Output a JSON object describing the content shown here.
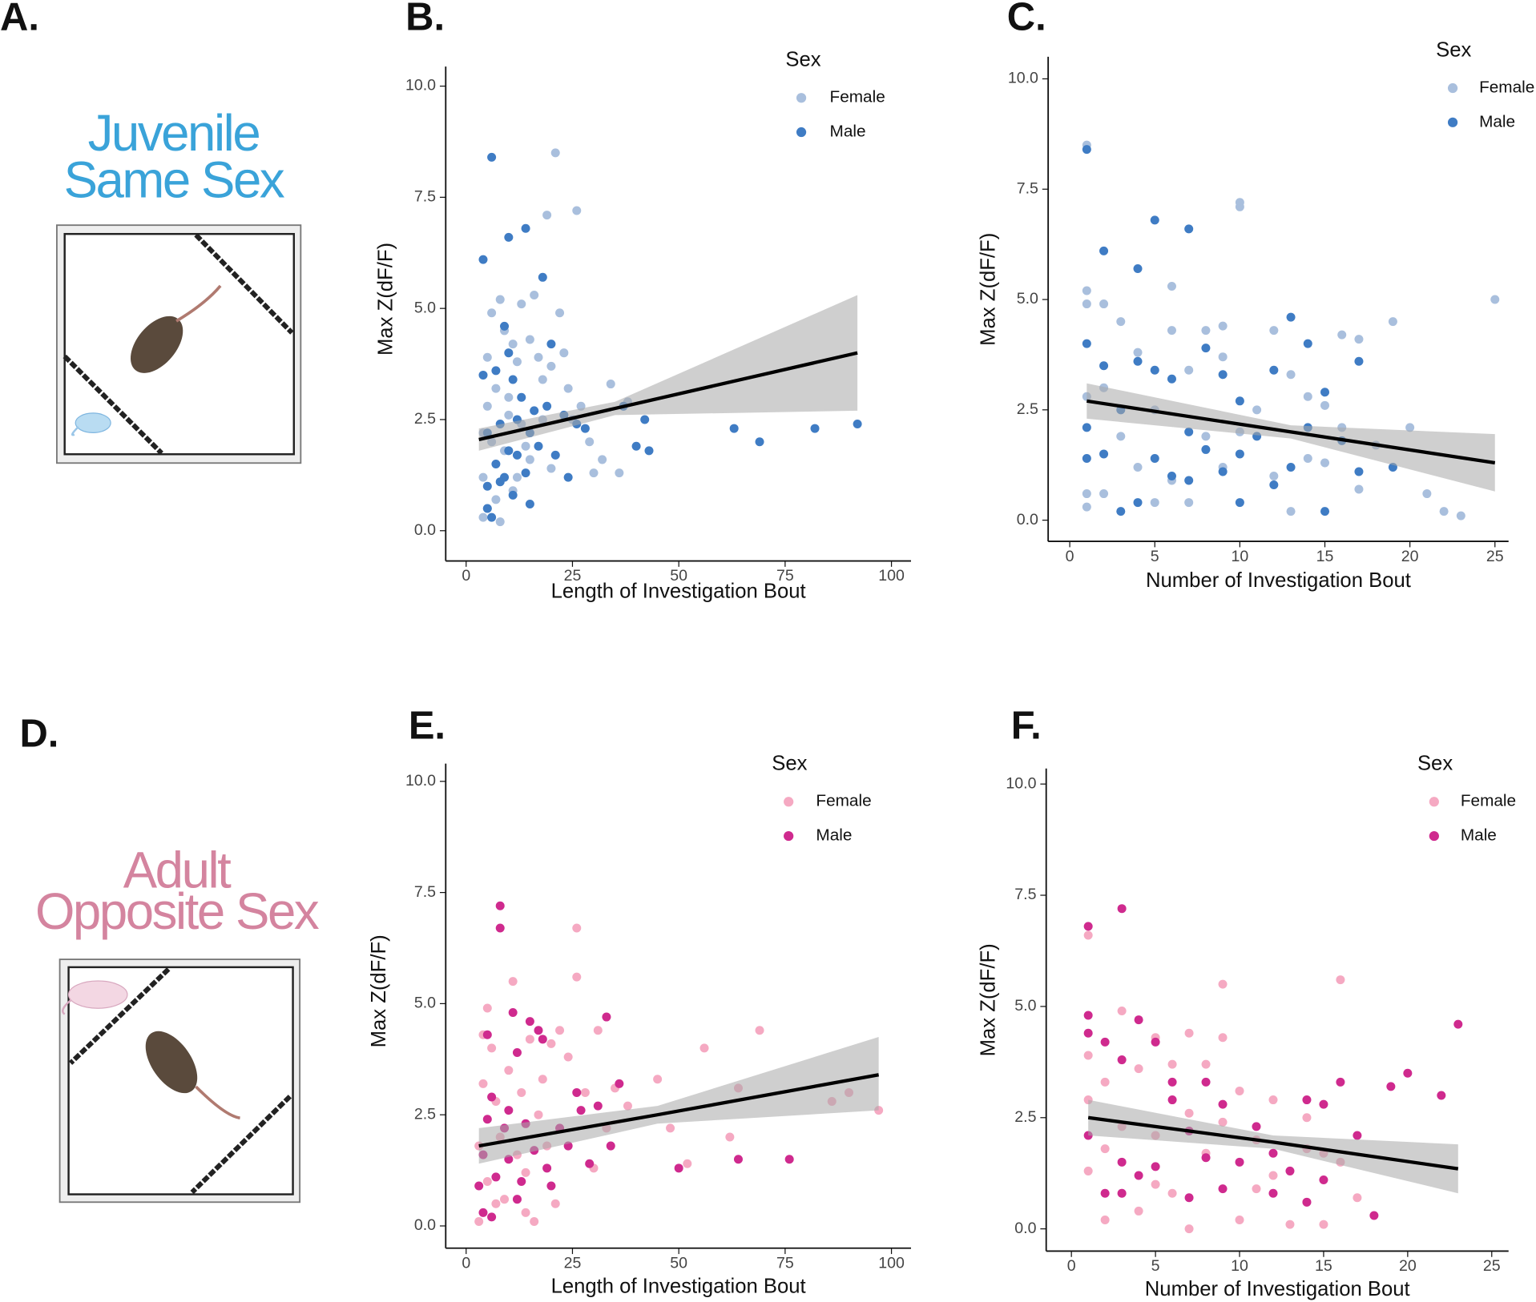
{
  "panel_labels": [
    "A.",
    "B.",
    "C.",
    "D.",
    "E.",
    "F."
  ],
  "illustrations": [
    {
      "title_lines": [
        "Juvenile",
        "Same Sex"
      ]
    },
    {
      "title_lines": [
        "Adult",
        "Opposite Sex"
      ]
    }
  ],
  "chart_data": [
    {
      "type": "scatter",
      "x_label": "Length of Investigation Bout",
      "y_label": "Max Z(dF/F)",
      "legend_title": "Sex",
      "xlim": [
        -4.8,
        104.6
      ],
      "ylim": [
        -0.68,
        10.44
      ],
      "xticks": [
        0,
        25,
        50,
        75,
        100
      ],
      "yticks": [
        {
          "value": 0,
          "label": "0.0"
        },
        {
          "value": 2.5,
          "label": "2.5"
        },
        {
          "value": 5,
          "label": "5.0"
        },
        {
          "value": 7.5,
          "label": "7.5"
        },
        {
          "value": 10,
          "label": "10.0"
        }
      ],
      "series": [
        {
          "name": "Female",
          "color": "#a9bfdd",
          "x": [
            4,
            5,
            4,
            6,
            5,
            7,
            6,
            8,
            9,
            10,
            11,
            12,
            13,
            14,
            15,
            16,
            17,
            18,
            19,
            20,
            21,
            22,
            23,
            24,
            26,
            27,
            29,
            30,
            32,
            34,
            36,
            38,
            4,
            7,
            9,
            11,
            13,
            15,
            18,
            20,
            25,
            5,
            8,
            10,
            12
          ],
          "values": [
            0.3,
            0.5,
            1.2,
            2.0,
            2.8,
            3.2,
            4.9,
            5.2,
            4.5,
            3.0,
            4.2,
            3.8,
            2.4,
            1.9,
            4.3,
            5.3,
            3.9,
            2.5,
            7.1,
            3.7,
            8.5,
            4.9,
            4.0,
            3.2,
            7.2,
            2.8,
            2.0,
            1.3,
            1.6,
            3.3,
            1.3,
            2.9,
            2.2,
            0.7,
            1.8,
            0.9,
            5.1,
            1.6,
            3.4,
            1.4,
            2.5,
            3.9,
            0.2,
            2.6,
            1.2
          ]
        },
        {
          "name": "Male",
          "color": "#3f7cc4",
          "x": [
            4,
            6,
            4,
            5,
            5,
            6,
            7,
            7,
            8,
            9,
            9,
            10,
            10,
            11,
            11,
            12,
            12,
            13,
            14,
            14,
            15,
            15,
            16,
            17,
            18,
            19,
            20,
            21,
            23,
            24,
            26,
            28,
            37,
            40,
            42,
            43,
            63,
            69,
            82,
            92,
            5,
            8,
            10
          ],
          "values": [
            6.1,
            8.4,
            3.5,
            2.2,
            1.0,
            0.3,
            1.5,
            3.6,
            2.4,
            4.6,
            1.2,
            6.6,
            4.0,
            3.4,
            0.8,
            2.5,
            1.7,
            3.0,
            6.8,
            1.3,
            0.6,
            2.2,
            2.7,
            1.9,
            5.7,
            2.8,
            4.2,
            1.7,
            2.6,
            1.2,
            2.4,
            2.3,
            2.8,
            1.9,
            2.5,
            1.8,
            2.3,
            2.0,
            2.3,
            2.4,
            0.5,
            1.1,
            1.8
          ]
        }
      ],
      "fit": {
        "x": [
          3,
          35,
          92
        ],
        "values": [
          2.05,
          2.75,
          4.0
        ],
        "lower": [
          1.8,
          2.6,
          2.7
        ],
        "upper": [
          2.3,
          2.9,
          5.3
        ]
      }
    },
    {
      "type": "scatter",
      "x_label": "Number of Investigation Bout",
      "y_label": "Max Z(dF/F)",
      "legend_title": "Sex",
      "xlim": [
        -1.27,
        25.8
      ],
      "ylim": [
        -0.48,
        10.5
      ],
      "xticks": [
        0,
        5,
        10,
        15,
        20,
        25
      ],
      "yticks": [
        {
          "value": 0,
          "label": "0.0"
        },
        {
          "value": 2.5,
          "label": "2.5"
        },
        {
          "value": 5,
          "label": "5.0"
        },
        {
          "value": 7.5,
          "label": "7.5"
        },
        {
          "value": 10,
          "label": "10.0"
        }
      ],
      "series": [
        {
          "name": "Female",
          "color": "#a9bfdd",
          "x": [
            1,
            1,
            1,
            1,
            1,
            1,
            2,
            2,
            2,
            3,
            3,
            4,
            4,
            5,
            5,
            6,
            6,
            6,
            7,
            7,
            8,
            8,
            9,
            9,
            9,
            10,
            10,
            10,
            11,
            12,
            12,
            13,
            13,
            14,
            14,
            15,
            15,
            16,
            16,
            17,
            17,
            18,
            19,
            20,
            21,
            22,
            23,
            25
          ],
          "values": [
            8.5,
            5.2,
            4.9,
            2.8,
            0.6,
            0.3,
            3.0,
            4.9,
            0.6,
            4.5,
            1.9,
            3.8,
            1.2,
            2.5,
            0.4,
            5.3,
            4.3,
            0.9,
            3.4,
            0.4,
            4.3,
            1.9,
            4.4,
            3.7,
            1.2,
            7.1,
            7.2,
            2.0,
            2.5,
            4.3,
            1.0,
            3.3,
            0.2,
            2.8,
            1.4,
            2.6,
            1.3,
            2.1,
            4.2,
            4.1,
            0.7,
            1.7,
            4.5,
            2.1,
            0.6,
            0.2,
            0.1,
            5.0
          ]
        },
        {
          "name": "Male",
          "color": "#3f7cc4",
          "x": [
            1,
            1,
            1,
            1,
            2,
            2,
            2,
            3,
            3,
            4,
            4,
            4,
            5,
            5,
            5,
            6,
            6,
            7,
            7,
            7,
            8,
            8,
            9,
            9,
            10,
            10,
            10,
            11,
            12,
            12,
            13,
            13,
            14,
            14,
            15,
            15,
            16,
            17,
            17,
            19
          ],
          "values": [
            8.4,
            4.0,
            2.1,
            1.4,
            6.1,
            3.5,
            1.5,
            2.5,
            0.2,
            5.7,
            3.6,
            0.4,
            6.8,
            3.4,
            1.4,
            3.2,
            1.0,
            6.6,
            2.0,
            0.9,
            3.9,
            1.6,
            3.3,
            1.1,
            2.7,
            1.5,
            0.4,
            1.9,
            3.4,
            0.8,
            4.6,
            1.2,
            4.0,
            2.1,
            2.9,
            0.2,
            1.8,
            3.6,
            1.1,
            1.2
          ]
        }
      ],
      "fit": {
        "x": [
          1,
          13,
          25
        ],
        "values": [
          2.7,
          2.0,
          1.3
        ],
        "lower": [
          2.3,
          1.85,
          0.65
        ],
        "upper": [
          3.1,
          2.15,
          1.95
        ]
      }
    },
    {
      "type": "scatter",
      "x_label": "Length of Investigation Bout",
      "y_label": "Max Z(dF/F)",
      "legend_title": "Sex",
      "xlim": [
        -4.8,
        104.6
      ],
      "ylim": [
        -0.5,
        10.4
      ],
      "xticks": [
        0,
        25,
        50,
        75,
        100
      ],
      "yticks": [
        {
          "value": 0,
          "label": "0.0"
        },
        {
          "value": 2.5,
          "label": "2.5"
        },
        {
          "value": 5,
          "label": "5.0"
        },
        {
          "value": 7.5,
          "label": "7.5"
        },
        {
          "value": 10,
          "label": "10.0"
        }
      ],
      "series": [
        {
          "name": "Female",
          "color": "#f5a9c2",
          "x": [
            3,
            3,
            4,
            4,
            5,
            6,
            7,
            8,
            9,
            10,
            11,
            12,
            13,
            14,
            15,
            16,
            17,
            18,
            19,
            20,
            21,
            22,
            24,
            26,
            26,
            28,
            30,
            31,
            33,
            35,
            38,
            45,
            48,
            52,
            56,
            62,
            64,
            69,
            86,
            90,
            97,
            5,
            7,
            14
          ],
          "values": [
            0.1,
            1.8,
            3.2,
            4.3,
            4.9,
            4.0,
            2.8,
            2.0,
            0.6,
            3.5,
            5.5,
            1.6,
            3.0,
            0.3,
            4.2,
            0.1,
            2.5,
            3.3,
            1.8,
            4.1,
            0.5,
            4.4,
            3.8,
            6.7,
            5.6,
            3.0,
            1.3,
            4.4,
            2.2,
            3.1,
            2.7,
            3.3,
            2.2,
            1.4,
            4.0,
            2.0,
            3.1,
            4.4,
            2.8,
            3.0,
            2.6,
            1.0,
            0.5,
            1.2
          ]
        },
        {
          "name": "Male",
          "color": "#cf2a8e",
          "x": [
            3,
            4,
            4,
            5,
            5,
            6,
            7,
            8,
            8,
            9,
            10,
            11,
            12,
            13,
            14,
            15,
            16,
            17,
            18,
            19,
            20,
            22,
            24,
            26,
            27,
            29,
            31,
            33,
            34,
            36,
            50,
            64,
            76,
            6,
            10,
            12
          ],
          "values": [
            0.9,
            0.3,
            1.6,
            2.4,
            4.3,
            0.2,
            1.1,
            7.2,
            6.7,
            2.2,
            1.5,
            4.8,
            3.9,
            1.0,
            2.3,
            4.6,
            1.7,
            4.4,
            4.2,
            1.3,
            0.9,
            2.2,
            1.8,
            3.0,
            2.6,
            1.4,
            2.7,
            4.7,
            1.8,
            3.2,
            1.3,
            1.5,
            1.5,
            2.9,
            2.6,
            0.6
          ]
        }
      ],
      "fit": {
        "x": [
          3,
          45,
          97
        ],
        "values": [
          1.8,
          2.5,
          3.4
        ],
        "lower": [
          1.4,
          2.3,
          2.6
        ],
        "upper": [
          2.2,
          2.7,
          4.25
        ]
      }
    },
    {
      "type": "scatter",
      "x_label": "Number of Investigation Bout",
      "y_label": "Max Z(dF/F)",
      "legend_title": "Sex",
      "xlim": [
        -1.5,
        26
      ],
      "ylim": [
        -0.5,
        10.35
      ],
      "xticks": [
        0,
        5,
        10,
        15,
        20,
        25
      ],
      "yticks": [
        {
          "value": 0,
          "label": "0.0"
        },
        {
          "value": 2.5,
          "label": "2.5"
        },
        {
          "value": 5,
          "label": "5.0"
        },
        {
          "value": 7.5,
          "label": "7.5"
        },
        {
          "value": 10,
          "label": "10.0"
        }
      ],
      "series": [
        {
          "name": "Female",
          "color": "#f5a9c2",
          "x": [
            1,
            1,
            1,
            1,
            2,
            2,
            2,
            3,
            3,
            3,
            4,
            4,
            5,
            5,
            5,
            6,
            6,
            7,
            7,
            7,
            8,
            8,
            9,
            9,
            9,
            10,
            10,
            11,
            11,
            12,
            12,
            13,
            14,
            14,
            14,
            15,
            15,
            16,
            16,
            17
          ],
          "values": [
            6.6,
            3.9,
            2.9,
            1.3,
            3.3,
            0.2,
            1.8,
            4.9,
            2.3,
            0.8,
            3.6,
            0.4,
            4.3,
            2.1,
            1.0,
            3.7,
            0.8,
            4.4,
            2.6,
            0.0,
            1.7,
            3.7,
            5.5,
            4.3,
            2.4,
            3.1,
            0.2,
            2.0,
            0.9,
            2.9,
            1.2,
            0.1,
            2.5,
            1.8,
            0.6,
            1.7,
            0.1,
            5.6,
            1.5,
            0.7
          ]
        },
        {
          "name": "Male",
          "color": "#cf2a8e",
          "x": [
            1,
            1,
            1,
            1,
            2,
            2,
            3,
            3,
            3,
            3,
            4,
            4,
            5,
            5,
            6,
            6,
            7,
            7,
            8,
            8,
            9,
            9,
            10,
            11,
            12,
            12,
            13,
            14,
            14,
            15,
            15,
            16,
            17,
            18,
            19,
            20,
            22,
            23
          ],
          "values": [
            6.8,
            4.8,
            4.4,
            2.1,
            4.2,
            0.8,
            7.2,
            3.8,
            1.5,
            0.8,
            4.7,
            1.2,
            4.2,
            1.4,
            3.3,
            2.9,
            2.2,
            0.7,
            3.3,
            1.6,
            2.8,
            0.9,
            1.5,
            2.3,
            1.7,
            0.8,
            1.3,
            2.9,
            0.6,
            2.8,
            1.1,
            3.3,
            2.1,
            0.3,
            3.2,
            3.5,
            3.0,
            4.6
          ]
        }
      ],
      "fit": {
        "x": [
          1,
          12,
          23
        ],
        "values": [
          2.5,
          1.95,
          1.35
        ],
        "lower": [
          2.1,
          1.8,
          0.8
        ],
        "upper": [
          2.9,
          2.1,
          1.9
        ]
      }
    }
  ]
}
